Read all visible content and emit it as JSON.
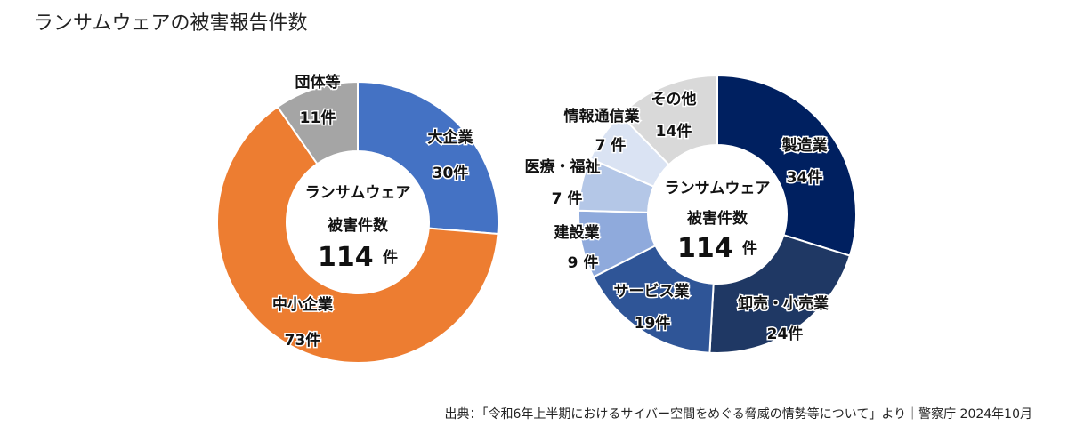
{
  "title": "ランサムウェアの被害報告件数",
  "source": "出典：「令和6年上半期におけるサイバー空間をめぐる脅威の情勢等について」より｜警察庁 2024年10月",
  "chart_data": [
    {
      "type": "pie",
      "donut": true,
      "center": {
        "line1": "ランサムウェア",
        "line2": "被害件数",
        "total": "114",
        "unit": "件"
      },
      "categories": [
        "大企業",
        "中小企業",
        "団体等"
      ],
      "values": [
        30,
        73,
        11
      ],
      "value_labels": [
        "30件",
        "73件",
        "11件"
      ],
      "colors": [
        "#4472C4",
        "#ED7D31",
        "#A5A5A5"
      ]
    },
    {
      "type": "pie",
      "donut": true,
      "center": {
        "line1": "ランサムウェア",
        "line2": "被害件数",
        "total": "114",
        "unit": "件"
      },
      "categories": [
        "製造業",
        "卸売・小売業",
        "サービス業",
        "建設業",
        "医療・福祉",
        "情報通信業",
        "その他"
      ],
      "values": [
        34,
        24,
        19,
        9,
        7,
        7,
        14
      ],
      "value_labels": [
        "34件",
        "24件",
        "19件",
        "9 件",
        "7 件",
        "7 件",
        "14件"
      ],
      "colors": [
        "#002060",
        "#1F3864",
        "#2F5597",
        "#8FAADC",
        "#B4C7E7",
        "#DAE3F3",
        "#D9D9D9"
      ]
    }
  ]
}
